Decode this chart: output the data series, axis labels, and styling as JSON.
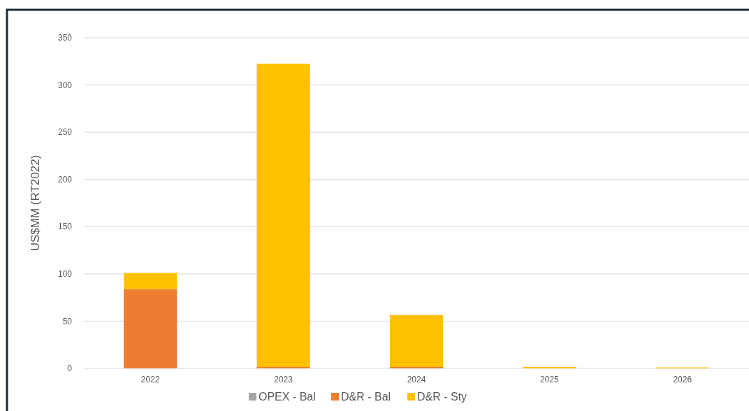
{
  "chart_data": {
    "type": "bar",
    "ylabel": "US$MM (RT2022)",
    "categories": [
      "2022",
      "2023",
      "2024",
      "2025",
      "2026"
    ],
    "stacked": true,
    "series": [
      {
        "name": "OPEX - Bal",
        "color": "#a5a5a5",
        "values": [
          0,
          0,
          0,
          0,
          0
        ]
      },
      {
        "name": "D&R - Bal",
        "color": "#ed7d31",
        "values": [
          84,
          1.5,
          1.5,
          0,
          0
        ]
      },
      {
        "name": "D&R - Sty",
        "color": "#ffc000",
        "values": [
          17,
          321,
          55,
          1.5,
          1
        ]
      }
    ],
    "ylim": [
      0,
      350
    ],
    "yticks": [
      0,
      50,
      100,
      150,
      200,
      250,
      300,
      350
    ],
    "grid": "y",
    "legend": "bottom"
  }
}
